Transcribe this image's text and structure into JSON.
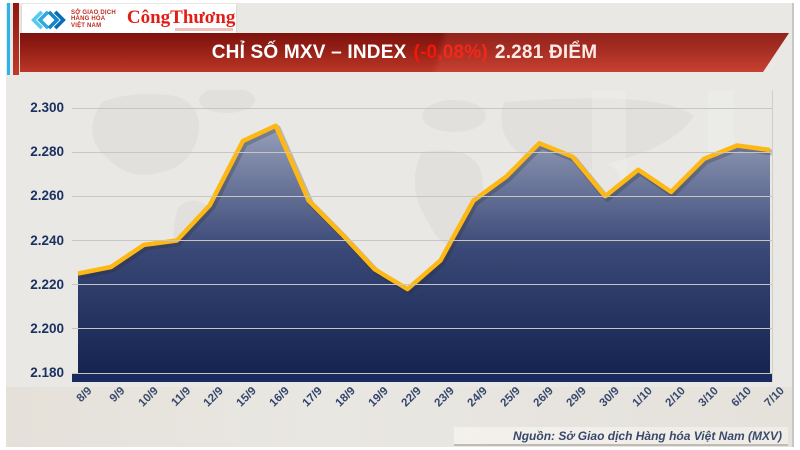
{
  "header": {
    "mxv_text": [
      "SỞ GIAO DỊCH",
      "HÀNG HÓA",
      "VIỆT NAM"
    ],
    "congthuong": "CôngThương"
  },
  "banner": {
    "title": "CHỈ SỐ MXV – INDEX",
    "change": "(-0,08%)",
    "value": "2.281 ĐIỂM"
  },
  "chart_data": {
    "type": "area",
    "title": "CHỈ SỐ MXV – INDEX (-0,08%) 2.281 ĐIỂM",
    "x": [
      "8/9",
      "9/9",
      "10/9",
      "11/9",
      "12/9",
      "15/9",
      "16/9",
      "17/9",
      "18/9",
      "19/9",
      "22/9",
      "23/9",
      "24/9",
      "25/9",
      "26/9",
      "29/9",
      "30/9",
      "1/10",
      "2/10",
      "3/10",
      "6/10",
      "7/10"
    ],
    "values": [
      2.225,
      2.228,
      2.238,
      2.24,
      2.256,
      2.285,
      2.292,
      2.258,
      2.243,
      2.227,
      2.218,
      2.231,
      2.258,
      2.269,
      2.284,
      2.278,
      2.26,
      2.272,
      2.262,
      2.277,
      2.283,
      2.281
    ],
    "ylim": [
      2.18,
      2.3
    ],
    "yticks": [
      "2.300",
      "2.280",
      "2.260",
      "2.240",
      "2.220",
      "2.200",
      "2.180"
    ],
    "grid": "horizontal",
    "legend": "none",
    "line_color": "#fdb813",
    "area_top": "#9ba4bd",
    "area_bottom": "#13214f",
    "axis_bar_color": "#1b2a5e",
    "label_color": "#1b3160"
  },
  "footer": {
    "source": "Nguồn: Sở Giao dịch Hàng hóa Việt Nam (MXV)"
  }
}
